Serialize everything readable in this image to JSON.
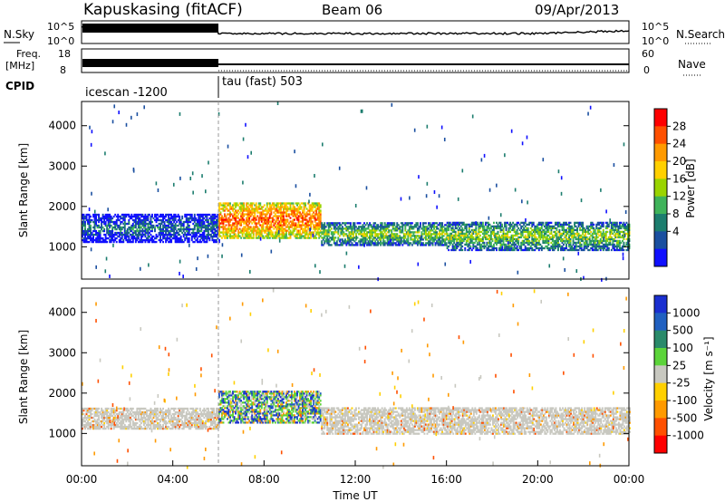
{
  "header": {
    "station": "Kapuskasing (fitACF)",
    "beam": "Beam 06",
    "date": "09/Apr/2013"
  },
  "aux_panels": {
    "noise": {
      "left_label": "N.Sky",
      "right_label": "N.Search",
      "left_ticks": [
        "10^5",
        "10^0"
      ],
      "right_ticks": [
        "10^5",
        "10^0"
      ]
    },
    "freq": {
      "label_top": "Freq.",
      "label_unit": "[MHz]",
      "left_ticks": [
        "18",
        "8"
      ],
      "right_label": "Nave",
      "right_ticks": [
        "60",
        "0"
      ]
    },
    "cpid": {
      "label": "CPID",
      "segments": [
        {
          "label": "icescan -1200",
          "start_hour": 0,
          "end_hour": 6.0
        },
        {
          "label": "tau (fast) 503",
          "start_hour": 6.0,
          "end_hour": 24
        }
      ]
    }
  },
  "x_axis": {
    "label": "Time UT",
    "ticks": [
      "00:00",
      "04:00",
      "08:00",
      "12:00",
      "16:00",
      "20:00",
      "00:00"
    ],
    "tick_hours": [
      0,
      4,
      8,
      12,
      16,
      20,
      24
    ]
  },
  "chart_data": [
    {
      "type": "heatmap",
      "name": "power",
      "ylabel": "Slant Range [km]",
      "yticks": [
        1000,
        2000,
        3000,
        4000
      ],
      "ylim": [
        200,
        4600
      ],
      "xlim_hours": [
        0,
        24
      ],
      "colorbar": {
        "label": "Power [dB]",
        "ticks": [
          "28",
          "24",
          "20",
          "16",
          "12",
          "8",
          "4"
        ],
        "colors": [
          "#ff0000",
          "#ff5000",
          "#ff9a00",
          "#ffd000",
          "#9ad400",
          "#3fb35a",
          "#1c7d6e",
          "#1a4fa0",
          "#1010ff"
        ]
      },
      "bands": [
        {
          "start_hour": 0.0,
          "end_hour": 6.0,
          "center_km": 1450,
          "width_km": 700,
          "level": "weak"
        },
        {
          "start_hour": 6.0,
          "end_hour": 10.5,
          "center_km": 1650,
          "width_km": 900,
          "level": "strong"
        },
        {
          "start_hour": 10.5,
          "end_hour": 16.0,
          "center_km": 1300,
          "width_km": 550,
          "level": "medium"
        },
        {
          "start_hour": 16.0,
          "end_hour": 24.0,
          "center_km": 1250,
          "width_km": 700,
          "level": "medium"
        }
      ]
    },
    {
      "type": "heatmap",
      "name": "velocity",
      "ylabel": "Slant Range [km]",
      "yticks": [
        1000,
        2000,
        3000,
        4000
      ],
      "ylim": [
        200,
        4600
      ],
      "xlim_hours": [
        0,
        24
      ],
      "colorbar": {
        "label": "Velocity [m s⁻¹]",
        "ticks": [
          "1000",
          "500",
          "100",
          "25",
          "-25",
          "-100",
          "-500",
          "-1000"
        ],
        "colors": [
          "#1a2fd0",
          "#2060c0",
          "#2a8a6a",
          "#5cd43a",
          "#c8c8c0",
          "#ffd000",
          "#ff9a00",
          "#ff5000",
          "#ff0000"
        ]
      },
      "bands": [
        {
          "start_hour": 0.0,
          "end_hour": 6.0,
          "center_km": 1350,
          "width_km": 500,
          "level": "ground"
        },
        {
          "start_hour": 6.0,
          "end_hour": 10.5,
          "center_km": 1650,
          "width_km": 800,
          "level": "flow"
        },
        {
          "start_hour": 10.5,
          "end_hour": 24.0,
          "center_km": 1300,
          "width_km": 650,
          "level": "ground"
        }
      ]
    }
  ]
}
